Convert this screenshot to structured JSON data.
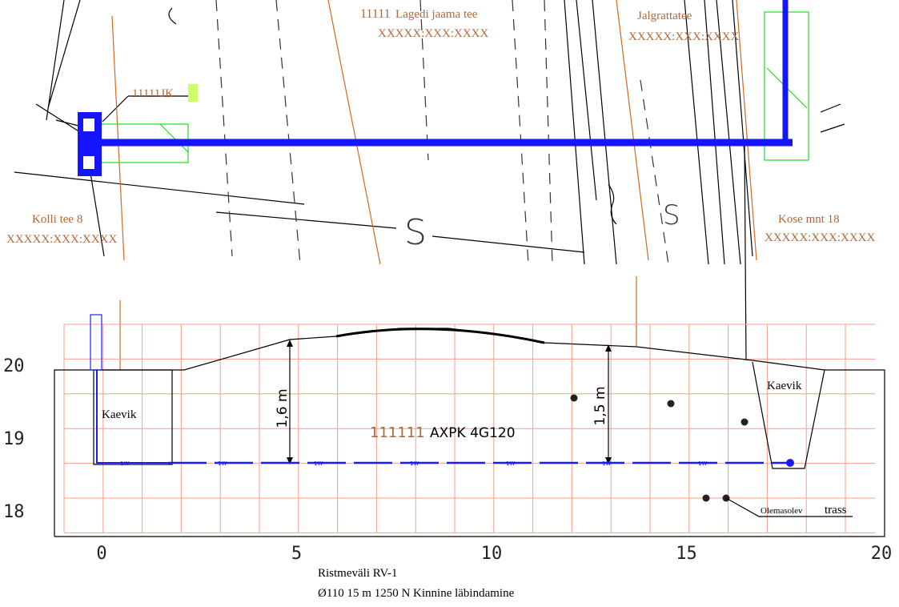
{
  "plan": {
    "parcels": [
      {
        "id": "11111",
        "name": "Lagedi jaama tee",
        "code": "XXXXX:XXX:XXXX"
      },
      {
        "name": "Jalgrattatee",
        "code": "XXXXX:XXX:XXXX"
      },
      {
        "name": "Kolli tee 8",
        "code": "XXXXX:XXX:XXXX"
      },
      {
        "name": "Kose mnt 18",
        "code": "XXXXX:XXX:XXXX"
      }
    ],
    "marker": "11111JK",
    "symbols": [
      "S",
      "S"
    ]
  },
  "profile": {
    "x_ticks": [
      0,
      5,
      10,
      15,
      20
    ],
    "y_ticks": [
      18,
      19,
      20
    ],
    "pit": "Kaevik",
    "depths": [
      "1,6 m",
      "1,5 m"
    ],
    "cable": {
      "id": "111111",
      "name": "AXPK 4G120"
    },
    "line_code": "1W",
    "existing": "Olemasolev",
    "route": "trass"
  },
  "caption": [
    "Ristmeväli RV-1",
    "Ø110  15 m 1250 N  Kinnine läbindamine"
  ]
}
